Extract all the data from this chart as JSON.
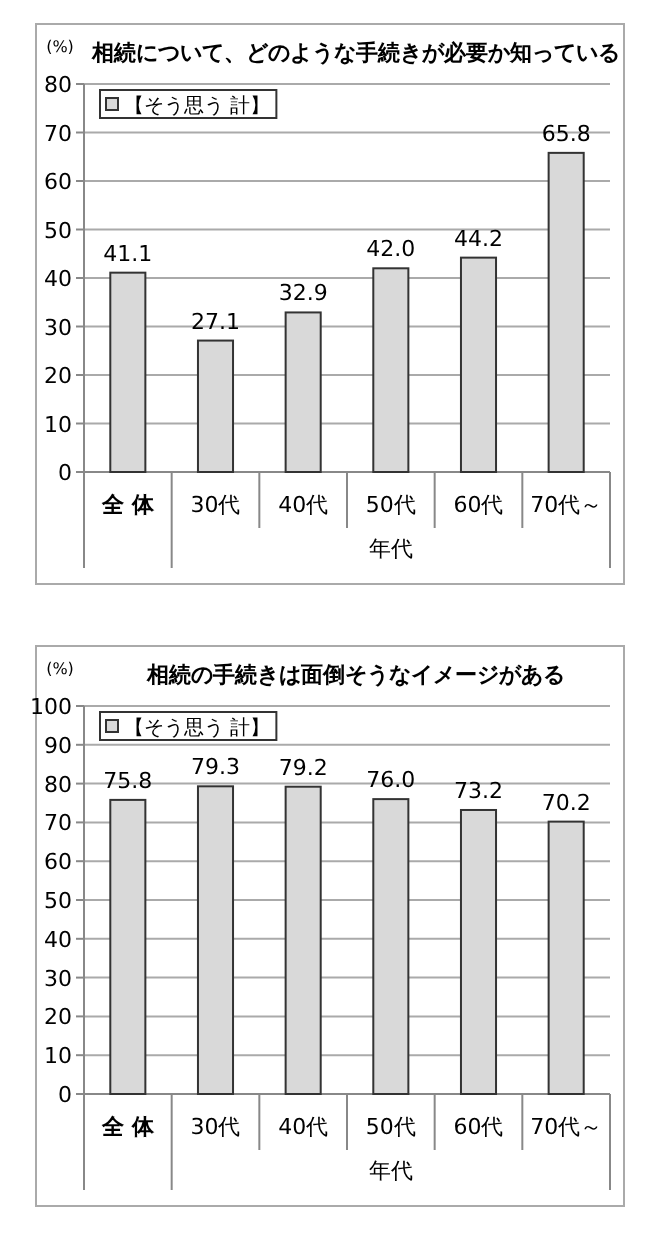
{
  "chart_data": [
    {
      "type": "bar",
      "title": "相続について、どのような手続きが必要か知っている",
      "ylabel": "(%)",
      "xlabel": "年代",
      "categories": [
        "全 体",
        "30代",
        "40代",
        "50代",
        "60代",
        "70代～"
      ],
      "series": [
        {
          "name": "【そう思う 計】",
          "color": "#d9d9d9",
          "values": [
            41.1,
            27.1,
            32.9,
            42.0,
            44.2,
            65.8
          ],
          "value_labels": [
            "41.1",
            "27.1",
            "32.9",
            "42.0",
            "44.2",
            "65.8"
          ]
        }
      ],
      "ylim": [
        0,
        80
      ],
      "yticks": [
        0,
        10,
        20,
        30,
        40,
        50,
        60,
        70,
        80
      ],
      "grid": "y",
      "legend": "top left"
    },
    {
      "type": "bar",
      "title": "相続の手続きは面倒そうなイメージがある",
      "ylabel": "(%)",
      "xlabel": "年代",
      "categories": [
        "全 体",
        "30代",
        "40代",
        "50代",
        "60代",
        "70代～"
      ],
      "series": [
        {
          "name": "【そう思う 計】",
          "color": "#d9d9d9",
          "values": [
            75.8,
            79.3,
            79.2,
            76.0,
            73.2,
            70.2
          ],
          "value_labels": [
            "75.8",
            "79.3",
            "79.2",
            "76.0",
            "73.2",
            "70.2"
          ]
        }
      ],
      "ylim": [
        0,
        100
      ],
      "yticks": [
        0,
        10,
        20,
        30,
        40,
        50,
        60,
        70,
        80,
        90,
        100
      ],
      "grid": "y",
      "legend": "top left"
    }
  ]
}
